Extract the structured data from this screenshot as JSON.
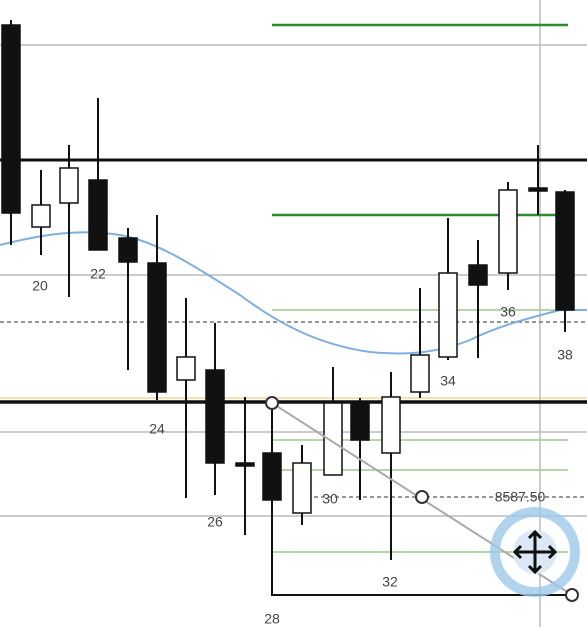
{
  "bar_labels": [
    "20",
    "22",
    "24",
    "26",
    "28",
    "30",
    "32",
    "34",
    "36",
    "38"
  ],
  "price_label": "8587.50"
}
